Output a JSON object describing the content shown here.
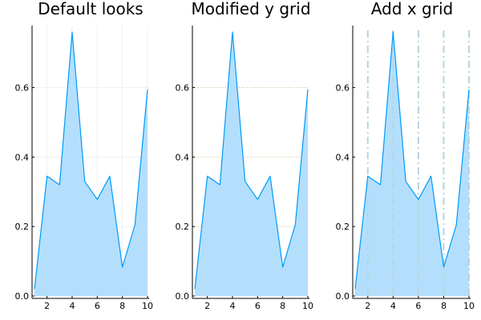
{
  "chart_data": [
    {
      "type": "area",
      "title": "Default looks",
      "grid": "default",
      "x": [
        1,
        2,
        3,
        4,
        5,
        6,
        7,
        8,
        9,
        10
      ],
      "y": [
        0.02,
        0.345,
        0.32,
        0.76,
        0.33,
        0.278,
        0.345,
        0.083,
        0.205,
        0.595
      ],
      "xlim": [
        1,
        10
      ],
      "ylim": [
        0,
        0.76
      ],
      "xticks": [
        2,
        4,
        6,
        8,
        10
      ],
      "yticks": [
        0.0,
        0.2,
        0.4,
        0.6
      ],
      "xticklabels": [
        "2",
        "4",
        "6",
        "8",
        "10"
      ],
      "yticklabels": [
        "0.0",
        "0.2",
        "0.4",
        "0.6"
      ],
      "xlabel": "",
      "ylabel": ""
    },
    {
      "type": "area",
      "title": "Modified y grid",
      "grid": "y-dotted",
      "x": [
        1,
        2,
        3,
        4,
        5,
        6,
        7,
        8,
        9,
        10
      ],
      "y": [
        0.02,
        0.345,
        0.32,
        0.76,
        0.33,
        0.278,
        0.345,
        0.083,
        0.205,
        0.595
      ],
      "xlim": [
        1,
        10
      ],
      "ylim": [
        0,
        0.76
      ],
      "xticks": [
        2,
        4,
        6,
        8,
        10
      ],
      "yticks": [
        0.0,
        0.2,
        0.4,
        0.6
      ],
      "xticklabels": [
        "2",
        "4",
        "6",
        "8",
        "10"
      ],
      "yticklabels": [
        "0.0",
        "0.2",
        "0.4",
        "0.6"
      ],
      "xlabel": "",
      "ylabel": ""
    },
    {
      "type": "area",
      "title": "Add x grid",
      "grid": "x-dashdot",
      "x": [
        1,
        2,
        3,
        4,
        5,
        6,
        7,
        8,
        9,
        10
      ],
      "y": [
        0.02,
        0.345,
        0.32,
        0.76,
        0.33,
        0.278,
        0.345,
        0.083,
        0.205,
        0.595
      ],
      "xlim": [
        1,
        10
      ],
      "ylim": [
        0,
        0.76
      ],
      "xticks": [
        2,
        4,
        6,
        8,
        10
      ],
      "yticks": [
        0.0,
        0.2,
        0.4,
        0.6
      ],
      "xticklabels": [
        "2",
        "4",
        "6",
        "8",
        "10"
      ],
      "yticklabels": [
        "0.0",
        "0.2",
        "0.4",
        "0.6"
      ],
      "xlabel": "",
      "ylabel": ""
    }
  ],
  "colors": {
    "line": "#009af9",
    "fill": "#b3dffd",
    "axis": "#000000",
    "default_grid": "#ececec",
    "y_grid": "#c8c49a",
    "x_grid": "#b7d5dd"
  }
}
